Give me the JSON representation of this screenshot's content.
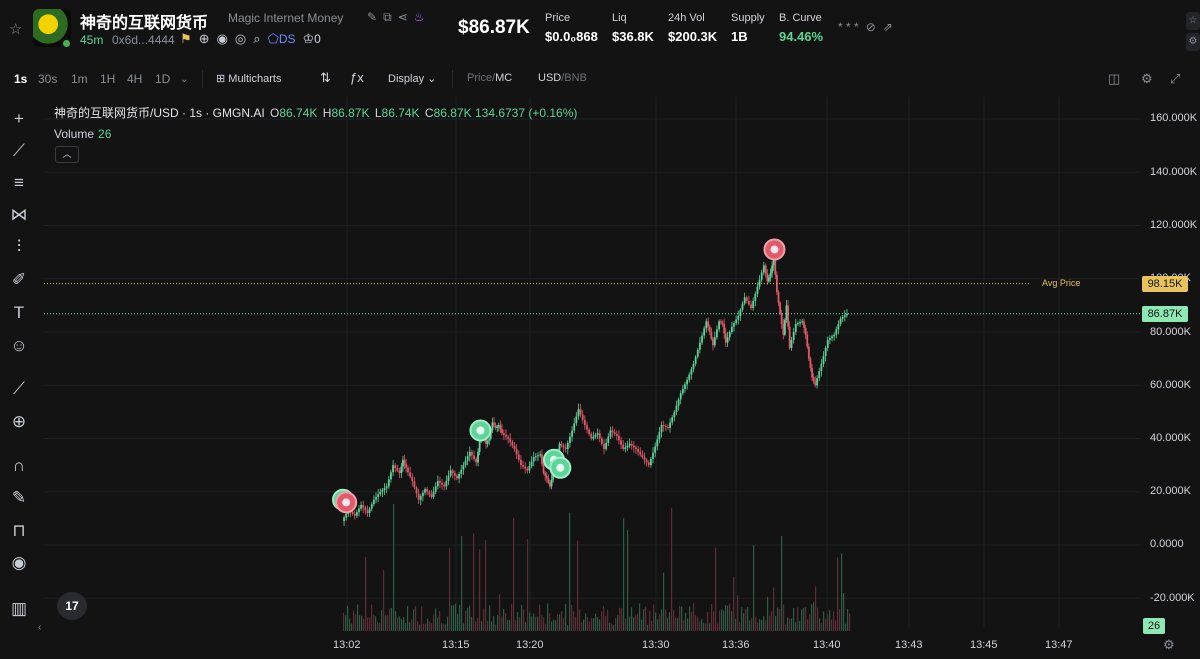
{
  "header": {
    "token_name": "神奇的互联网货币",
    "token_subtitle": "Magic Internet Money",
    "age": "45m",
    "address": "0x6d...4444",
    "ds_label": "DS",
    "holder_count": "0",
    "market_cap": "$86.87K",
    "stats": [
      {
        "label": "Price",
        "value": "$0.0₀868"
      },
      {
        "label": "Liq",
        "value": "$36.8K"
      },
      {
        "label": "24h Vol",
        "value": "$200.3K"
      },
      {
        "label": "Supply",
        "value": "1B"
      },
      {
        "label": "B. Curve",
        "value": "94.46%"
      }
    ]
  },
  "toolbar": {
    "timeframes": [
      "1s",
      "30s",
      "1m",
      "1H",
      "4H",
      "1D"
    ],
    "active_timeframe": "1s",
    "multicharts": "Multicharts",
    "display": "Display",
    "price_label": "Price",
    "mc_label": "MC",
    "usd_label": "USD",
    "bnb_label": "BNB",
    "slash": "/"
  },
  "legend": {
    "symbol": "神奇的互联网货币/USD · 1s · GMGN.AI",
    "o_key": "O",
    "o": "86.74K",
    "h_key": "H",
    "h": "86.87K",
    "l_key": "L",
    "l": "86.74K",
    "c_key": "C",
    "c": "86.87K",
    "vol": "134.6737",
    "change": "(+0.16%)",
    "volume_label": "Volume",
    "volume_value": "26"
  },
  "chart_data": {
    "type": "candlestick",
    "y_axis_ticks": [
      "160.000K",
      "140.000K",
      "120.000K",
      "100.00K",
      "80.000K",
      "60.000K",
      "40.000K",
      "20.000K",
      "0.0000",
      "-20.000K"
    ],
    "x_axis_ticks": [
      "13:02",
      "13:15",
      "13:20",
      "13:30",
      "13:36",
      "13:40",
      "13:43",
      "13:45",
      "13:47"
    ],
    "avg_price_label": "Avg Price",
    "avg_price": "98.15K",
    "avg_price_value": 98150,
    "last_price": "86.87K",
    "last_price_value": 86870,
    "last_volume": "26",
    "ylim": [
      -20000,
      160000
    ],
    "colors": {
      "up": "#5ed49a",
      "down": "#e05a6a",
      "avg": "#e8c25a",
      "last": "#8de8b4"
    },
    "price_path": [
      [
        0,
        9000
      ],
      [
        2,
        13000
      ],
      [
        4,
        11000
      ],
      [
        6,
        15000
      ],
      [
        8,
        12000
      ],
      [
        10,
        17000
      ],
      [
        12,
        20000
      ],
      [
        14,
        22000
      ],
      [
        16,
        30000
      ],
      [
        18,
        27000
      ],
      [
        19,
        32000
      ],
      [
        20,
        29000
      ],
      [
        22,
        24000
      ],
      [
        24,
        17000
      ],
      [
        26,
        21000
      ],
      [
        28,
        18000
      ],
      [
        30,
        24000
      ],
      [
        32,
        22000
      ],
      [
        34,
        28000
      ],
      [
        36,
        25000
      ],
      [
        38,
        30000
      ],
      [
        40,
        35000
      ],
      [
        42,
        31000
      ],
      [
        43,
        39000
      ],
      [
        44,
        43000
      ],
      [
        45,
        38000
      ],
      [
        46,
        40000
      ],
      [
        47,
        46000
      ],
      [
        48,
        44000
      ],
      [
        49,
        45000
      ],
      [
        50,
        42000
      ],
      [
        52,
        40000
      ],
      [
        54,
        36000
      ],
      [
        56,
        30000
      ],
      [
        58,
        28000
      ],
      [
        60,
        33000
      ],
      [
        62,
        34000
      ],
      [
        63,
        27000
      ],
      [
        64,
        25000
      ],
      [
        65,
        22000
      ],
      [
        66,
        27000
      ],
      [
        67,
        33000
      ],
      [
        68,
        38000
      ],
      [
        70,
        36000
      ],
      [
        72,
        43000
      ],
      [
        74,
        51000
      ],
      [
        76,
        45000
      ],
      [
        78,
        40000
      ],
      [
        80,
        42000
      ],
      [
        82,
        36000
      ],
      [
        84,
        43000
      ],
      [
        86,
        41000
      ],
      [
        88,
        36000
      ],
      [
        90,
        38000
      ],
      [
        92,
        36000
      ],
      [
        94,
        33000
      ],
      [
        96,
        30000
      ],
      [
        98,
        37000
      ],
      [
        100,
        45000
      ],
      [
        102,
        44000
      ],
      [
        104,
        50000
      ],
      [
        106,
        57000
      ],
      [
        108,
        62000
      ],
      [
        110,
        68000
      ],
      [
        112,
        76000
      ],
      [
        114,
        84000
      ],
      [
        115,
        80000
      ],
      [
        116,
        75000
      ],
      [
        118,
        84000
      ],
      [
        119,
        83000
      ],
      [
        120,
        76000
      ],
      [
        122,
        82000
      ],
      [
        124,
        86000
      ],
      [
        126,
        93000
      ],
      [
        128,
        89000
      ],
      [
        130,
        97000
      ],
      [
        132,
        105000
      ],
      [
        133,
        99000
      ],
      [
        134,
        102000
      ],
      [
        135,
        108000
      ],
      [
        136,
        95000
      ],
      [
        137,
        87000
      ],
      [
        138,
        79000
      ],
      [
        139,
        90000
      ],
      [
        140,
        74000
      ],
      [
        142,
        83000
      ],
      [
        144,
        84000
      ],
      [
        145,
        79000
      ],
      [
        146,
        70000
      ],
      [
        147,
        63000
      ],
      [
        148,
        60000
      ],
      [
        150,
        68000
      ],
      [
        152,
        77000
      ],
      [
        154,
        79000
      ],
      [
        156,
        85000
      ],
      [
        158,
        86870
      ]
    ],
    "markers": [
      {
        "t": 0,
        "price": 17000,
        "kind": "buy"
      },
      {
        "t": 1,
        "price": 16000,
        "kind": "ds-sell"
      },
      {
        "t": 43,
        "price": 43000,
        "kind": "buy"
      },
      {
        "t": 66,
        "price": 32000,
        "kind": "buy"
      },
      {
        "t": 68,
        "price": 29000,
        "kind": "buy"
      },
      {
        "t": 135,
        "price": 111000,
        "kind": "sell"
      }
    ]
  }
}
